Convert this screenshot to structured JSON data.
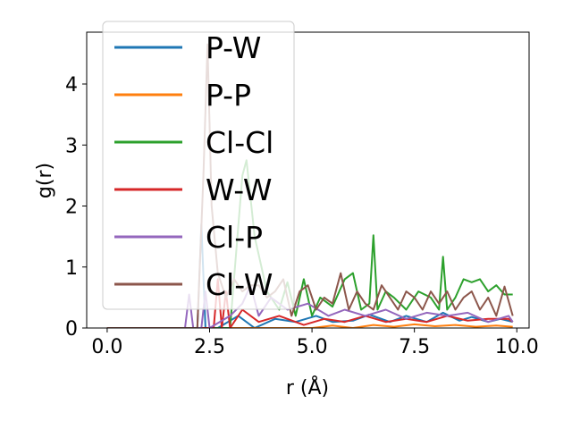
{
  "chart_data": {
    "type": "line",
    "title": "",
    "xlabel": "r (Å)",
    "ylabel": "g(r)",
    "xlim": [
      -0.5,
      10.3
    ],
    "ylim": [
      0,
      4.85
    ],
    "xticks": [
      {
        "value": 0.0,
        "label": "0.0"
      },
      {
        "value": 2.5,
        "label": "2.5"
      },
      {
        "value": 5.0,
        "label": "5.0"
      },
      {
        "value": 7.5,
        "label": "7.5"
      },
      {
        "value": 10.0,
        "label": "10.0"
      }
    ],
    "yticks": [
      {
        "value": 0,
        "label": "0"
      },
      {
        "value": 1,
        "label": "1"
      },
      {
        "value": 2,
        "label": "2"
      },
      {
        "value": 3,
        "label": "3"
      },
      {
        "value": 4,
        "label": "4"
      }
    ],
    "grid": false,
    "legend_position": "upper-left",
    "series": [
      {
        "name": "P-W",
        "color": "#1f77b4",
        "x": [
          0.0,
          1.9,
          2.2,
          2.3,
          2.4,
          2.7,
          3.2,
          3.6,
          4.1,
          4.6,
          5.1,
          5.5,
          6.0,
          6.4,
          6.9,
          7.3,
          7.8,
          8.2,
          8.6,
          8.9,
          9.3,
          9.6,
          9.9
        ],
        "y": [
          0,
          0,
          0,
          1.7,
          0,
          0,
          0.2,
          0,
          0.15,
          0.1,
          0.2,
          0.1,
          0.12,
          0.22,
          0.1,
          0.2,
          0.1,
          0.25,
          0.12,
          0.18,
          0.1,
          0.15,
          0.1
        ]
      },
      {
        "name": "P-P",
        "color": "#ff7f0e",
        "x": [
          0.0,
          5.0,
          5.5,
          6.0,
          6.5,
          7.0,
          7.5,
          8.0,
          8.5,
          9.0,
          9.5,
          9.9
        ],
        "y": [
          0,
          0,
          0.04,
          0,
          0.05,
          0.02,
          0.06,
          0.03,
          0.05,
          0.02,
          0.04,
          0.02
        ]
      },
      {
        "name": "Cl-Cl",
        "color": "#2ca02c",
        "x": [
          0.0,
          3.0,
          3.3,
          3.4,
          3.6,
          3.9,
          4.2,
          4.4,
          4.6,
          4.8,
          5.0,
          5.2,
          5.5,
          5.8,
          6.0,
          6.2,
          6.4,
          6.5,
          6.6,
          6.8,
          7.0,
          7.3,
          7.6,
          7.9,
          8.1,
          8.2,
          8.3,
          8.5,
          8.7,
          8.9,
          9.1,
          9.3,
          9.5,
          9.7,
          9.9
        ],
        "y": [
          0,
          0,
          2.5,
          2.75,
          1.5,
          0.6,
          0.3,
          0.75,
          0.2,
          0.8,
          0.2,
          0.5,
          0.35,
          0.8,
          0.9,
          0.3,
          0.4,
          1.52,
          0.3,
          0.6,
          0.5,
          0.3,
          0.6,
          0.5,
          0.3,
          1.17,
          0.3,
          0.5,
          0.8,
          0.75,
          0.8,
          0.6,
          0.7,
          0.55,
          0.55
        ]
      },
      {
        "name": "W-W",
        "color": "#d62728",
        "x": [
          0.0,
          2.6,
          2.7,
          2.8,
          2.9,
          3.0,
          3.3,
          3.7,
          4.2,
          4.8,
          5.3,
          5.8,
          6.3,
          6.8,
          7.3,
          7.8,
          8.3,
          8.8,
          9.3,
          9.8,
          9.9
        ],
        "y": [
          0,
          0,
          0.8,
          0,
          0.6,
          0,
          0.3,
          0.1,
          0.2,
          0.05,
          0.15,
          0.1,
          0.2,
          0.1,
          0.15,
          0.1,
          0.2,
          0.12,
          0.15,
          0.15,
          0.1
        ]
      },
      {
        "name": "Cl-P",
        "color": "#9467bd",
        "x": [
          0.0,
          1.9,
          2.0,
          2.1,
          2.3,
          2.4,
          2.5,
          3.0,
          3.3,
          3.5,
          3.7,
          4.0,
          4.4,
          4.9,
          5.4,
          5.8,
          6.3,
          6.8,
          7.3,
          7.8,
          8.3,
          8.8,
          9.3,
          9.8,
          9.9
        ],
        "y": [
          0,
          0,
          0.55,
          0,
          0,
          0.6,
          0,
          0.2,
          0.4,
          0.7,
          0.2,
          0.5,
          0.3,
          0.4,
          0.2,
          0.3,
          0.2,
          0.3,
          0.15,
          0.25,
          0.2,
          0.25,
          0.1,
          0.2,
          0.1
        ]
      },
      {
        "name": "Cl-W",
        "color": "#8c564b",
        "x": [
          0.0,
          2.2,
          2.35,
          2.45,
          2.55,
          2.7,
          2.9,
          3.1,
          3.3,
          3.5,
          3.7,
          3.9,
          4.1,
          4.3,
          4.5,
          4.7,
          4.9,
          5.1,
          5.3,
          5.5,
          5.7,
          5.9,
          6.1,
          6.3,
          6.5,
          6.7,
          6.9,
          7.1,
          7.3,
          7.5,
          7.7,
          7.9,
          8.1,
          8.3,
          8.5,
          8.7,
          8.9,
          9.1,
          9.3,
          9.5,
          9.7,
          9.9
        ],
        "y": [
          0,
          0,
          2.5,
          4.65,
          2.0,
          0.9,
          0.5,
          0.8,
          0.6,
          0.7,
          0.7,
          0.5,
          0.6,
          0.8,
          0.2,
          0.6,
          0.7,
          0.3,
          0.5,
          0.4,
          0.9,
          0.3,
          0.6,
          0.4,
          0.3,
          0.7,
          0.5,
          0.3,
          0.6,
          0.5,
          0.3,
          0.6,
          0.4,
          0.6,
          0.3,
          0.5,
          0.6,
          0.3,
          0.5,
          0.2,
          0.68,
          0.2
        ]
      }
    ]
  }
}
